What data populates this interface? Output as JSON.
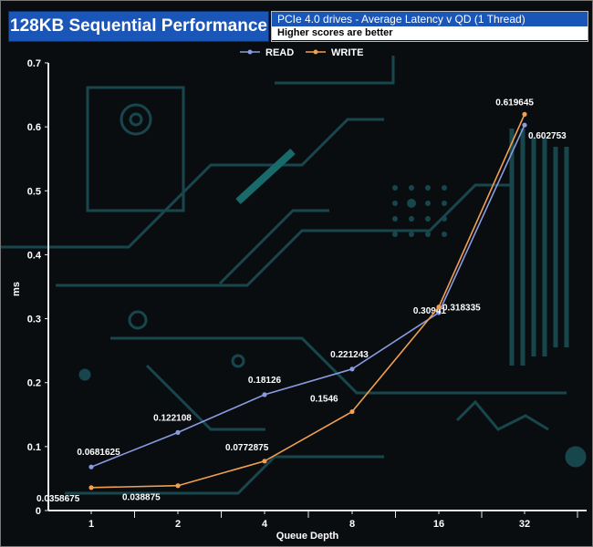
{
  "header": {
    "title": "128KB Sequential Performance",
    "subtitle": "PCIe 4.0 drives - Average Latency v QD (1 Thread)",
    "note": "Higher scores are better"
  },
  "chart_data": {
    "type": "line",
    "title": "128KB Sequential Performance",
    "subtitle": "PCIe 4.0 drives - Average Latency v QD (1 Thread)",
    "xlabel": "Queue Depth",
    "ylabel": "ms",
    "categories": [
      "1",
      "2",
      "4",
      "8",
      "16",
      "32"
    ],
    "ylim": [
      0,
      0.7
    ],
    "yticks": [
      "0",
      "0.1",
      "0.2",
      "0.3",
      "0.4",
      "0.5",
      "0.6",
      "0.7"
    ],
    "legend_position": "top-center",
    "grid": false,
    "series": [
      {
        "name": "READ",
        "color": "#8a9be0",
        "values": [
          0.0681625,
          0.122108,
          0.18126,
          0.221243,
          0.30941,
          0.602753
        ],
        "labels": [
          "0.0681625",
          "0.122108",
          "0.18126",
          "0.221243",
          "0.30941",
          "0.602753"
        ]
      },
      {
        "name": "WRITE",
        "color": "#f0a050",
        "values": [
          0.0358675,
          0.038875,
          0.0772875,
          0.1546,
          0.318335,
          0.619645
        ],
        "labels": [
          "0.0358675",
          "0.038875",
          "0.0772875",
          "0.1546",
          "0.318335",
          "0.619645"
        ]
      }
    ]
  }
}
